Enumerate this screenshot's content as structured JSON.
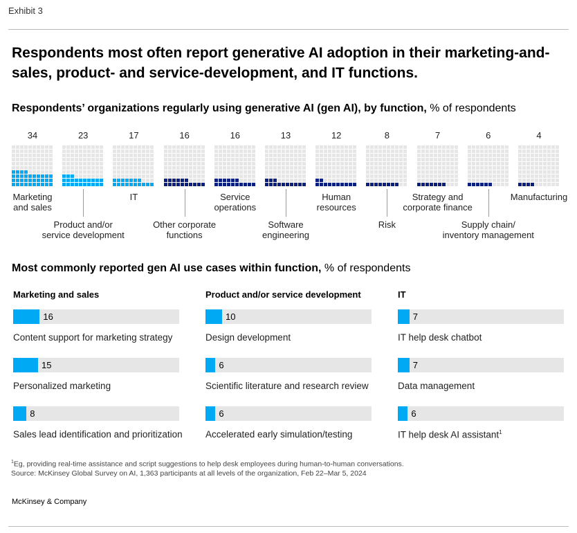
{
  "exhibit": "Exhibit 3",
  "title": "Respondents most often report generative AI adoption in their marketing-and-sales, product- and service-development, and IT functions.",
  "colors": {
    "high": "#00a9f4",
    "low": "#0a1f80",
    "empty": "#e6e6e6"
  },
  "chart_data": [
    {
      "type": "waffle",
      "title": "Respondents’ organizations regularly using generative AI (gen AI), by function,",
      "unit": "% of respondents",
      "categories": [
        "Marketing and sales",
        "Product and/or service development",
        "IT",
        "Other corporate functions",
        "Service operations",
        "Software engineering",
        "Human resources",
        "Risk",
        "Strategy and corporate finance",
        "Supply chain/ inventory management",
        "Manufacturing"
      ],
      "labels": [
        [
          "Marketing",
          "and sales"
        ],
        [
          "Product and/or",
          "service development"
        ],
        [
          "IT"
        ],
        [
          "Other corporate",
          "functions"
        ],
        [
          "Service",
          "operations"
        ],
        [
          "Software",
          "engineering"
        ],
        [
          "Human",
          "resources"
        ],
        [
          "Risk"
        ],
        [
          "Strategy and",
          "corporate finance"
        ],
        [
          "Supply chain/",
          "inventory management"
        ],
        [
          "Manufacturing"
        ]
      ],
      "values": [
        34,
        23,
        17,
        16,
        16,
        13,
        12,
        8,
        7,
        6,
        4
      ]
    },
    {
      "type": "bar",
      "title": "Most commonly reported gen AI use cases within function,",
      "unit": "% of respondents",
      "xlim": [
        0,
        100
      ],
      "groups": [
        {
          "name": "Marketing and sales",
          "items": [
            {
              "label": "Content support for marketing strategy",
              "value": 16
            },
            {
              "label": "Personalized marketing",
              "value": 15
            },
            {
              "label": "Sales lead identification and prioritization",
              "value": 8
            }
          ]
        },
        {
          "name": "Product and/or service development",
          "items": [
            {
              "label": "Design development",
              "value": 10
            },
            {
              "label": "Scientific literature and research review",
              "value": 6
            },
            {
              "label": "Accelerated early simulation/testing",
              "value": 6
            }
          ]
        },
        {
          "name": "IT",
          "items": [
            {
              "label": "IT help desk chatbot",
              "value": 7
            },
            {
              "label": "Data management",
              "value": 7
            },
            {
              "label": "IT help desk AI assistant",
              "value": 6,
              "footnote": "1"
            }
          ]
        }
      ]
    }
  ],
  "footnote": "Eg, providing real-time assistance and script suggestions to help desk employees during human-to-human conversations.",
  "footnote_mark": "1",
  "source": "Source: McKinsey Global Survey on AI, 1,363 participants at all levels of the organization, Feb 22–Mar 5, 2024",
  "logo": "McKinsey & Company"
}
